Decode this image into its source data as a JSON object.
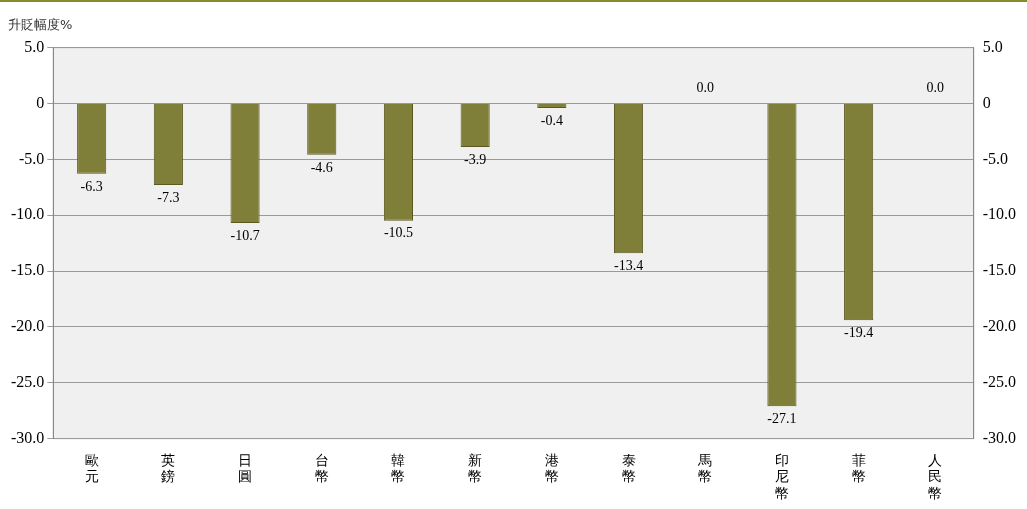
{
  "chart_data": {
    "type": "bar",
    "title": "升貶幅度%",
    "categories": [
      "歐元",
      "英鎊",
      "日圓",
      "台幣",
      "韓幣",
      "新幣",
      "港幣",
      "泰幣",
      "馬幣",
      "印尼幣",
      "菲幣",
      "人民幣"
    ],
    "values": [
      -6.3,
      -7.3,
      -10.7,
      -4.6,
      -10.5,
      -3.9,
      -0.4,
      -13.4,
      0.0,
      -27.1,
      -19.4,
      0.0
    ],
    "value_labels": [
      "-6.3",
      "-7.3",
      "-10.7",
      "-4.6",
      "-10.5",
      "-3.9",
      "-0.4",
      "-13.4",
      "0.0",
      "-27.1",
      "-19.4",
      "0.0"
    ],
    "color": "#7f7f3a",
    "ylim": [
      -30,
      5
    ],
    "yticks": [
      {
        "value": 5,
        "label": "5.0"
      },
      0,
      {
        "value": -5,
        "label": "-5.0"
      },
      {
        "value": -10,
        "label": "-10.0"
      },
      {
        "value": -15,
        "label": "-15.0"
      },
      {
        "value": -20,
        "label": "-20.0"
      },
      {
        "value": -25,
        "label": "-25.0"
      },
      {
        "value": -30,
        "label": "-30.0"
      }
    ],
    "y2lim": [
      -30,
      5
    ],
    "y2ticks": [
      {
        "value": 5,
        "label": "5.0"
      },
      0,
      {
        "value": -5,
        "label": "-5.0"
      },
      {
        "value": -10,
        "label": "-10.0"
      },
      {
        "value": -15,
        "label": "-15.0"
      },
      {
        "value": -20,
        "label": "-20.0"
      },
      {
        "value": -25,
        "label": "-25.0"
      },
      {
        "value": -30,
        "label": "-30.0"
      }
    ],
    "grid": "y",
    "legend": false
  }
}
